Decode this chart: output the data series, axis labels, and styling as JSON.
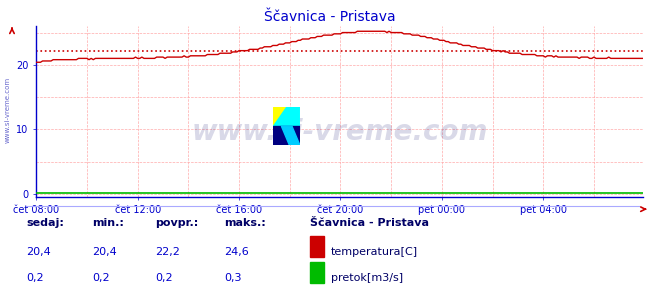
{
  "title": "Ščavnica - Pristava",
  "title_color": "#0000cc",
  "bg_color": "#ffffff",
  "plot_bg_color": "#ffffff",
  "grid_color_h": "#ffaaaa",
  "grid_color_v": "#ffaaaa",
  "axis_color": "#0000cc",
  "x_labels": [
    "čet 08:00",
    "čet 12:00",
    "čet 16:00",
    "čet 20:00",
    "pet 00:00",
    "pet 04:00"
  ],
  "y_ticks": [
    0,
    10,
    20
  ],
  "ylim": [
    -0.5,
    26
  ],
  "xlim": [
    0,
    287
  ],
  "avg_line_value": 22.2,
  "avg_line_color": "#cc0000",
  "temp_line_color": "#cc0000",
  "flow_line_color": "#00bb00",
  "watermark_text": "www.si-vreme.com",
  "watermark_color": "#000066",
  "watermark_alpha": 0.15,
  "sidebar_text": "www.si-vreme.com",
  "sidebar_color": "#0000aa",
  "legend_title": "Ščavnica - Pristava",
  "legend_title_color": "#000066",
  "label_color": "#000066",
  "value_color": "#0000cc",
  "footer_labels": [
    "sedaj:",
    "min.:",
    "povpr.:",
    "maks.:"
  ],
  "footer_temp": [
    "20,4",
    "20,4",
    "22,2",
    "24,6"
  ],
  "footer_flow": [
    "0,2",
    "0,2",
    "0,2",
    "0,3"
  ],
  "legend_temp": "temperatura[C]",
  "legend_flow": "pretok[m3/s]",
  "n_points": 288,
  "x_tick_pos": [
    0,
    48,
    96,
    144,
    192,
    240
  ],
  "separator_color": "#aaaaff",
  "arrow_color": "#cc0000",
  "xaxis_line_color": "#0000cc",
  "yaxis_line_color": "#0000cc"
}
